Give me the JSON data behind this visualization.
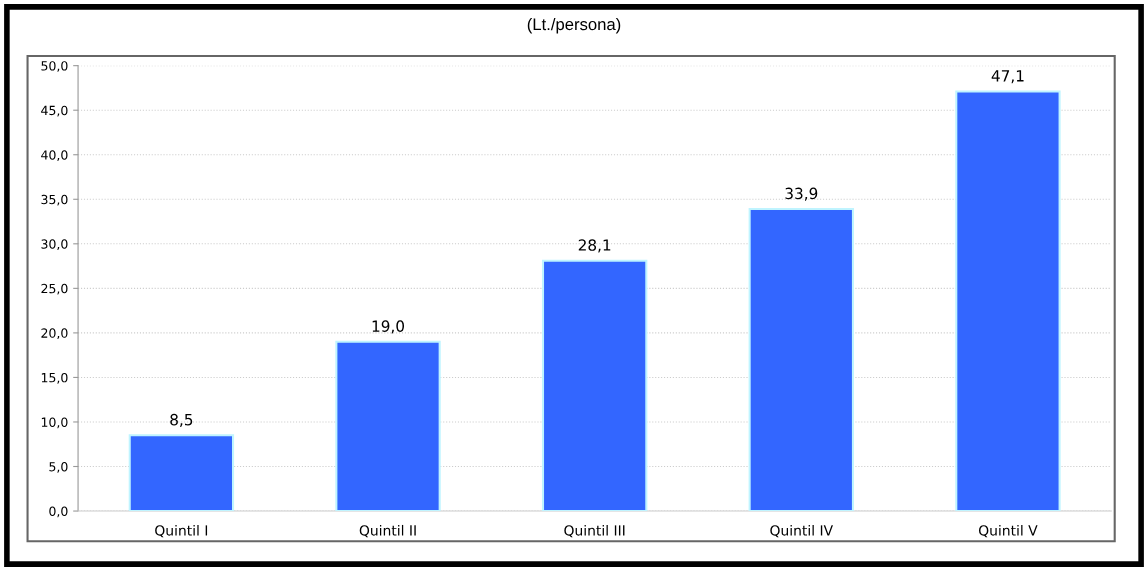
{
  "chart_data": {
    "type": "bar",
    "title": "(Lt./persona)",
    "categories": [
      "Quintil I",
      "Quintil II",
      "Quintil III",
      "Quintil IV",
      "Quintil V"
    ],
    "values": [
      8.5,
      19.0,
      28.1,
      33.9,
      47.1
    ],
    "value_labels": [
      "8,5",
      "19,0",
      "28,1",
      "33,9",
      "47,1"
    ],
    "color": "#3366ff",
    "ylim": [
      0,
      50
    ],
    "yticks": [
      {
        "value": 0,
        "label": "0,0"
      },
      {
        "value": 5,
        "label": "5,0"
      },
      {
        "value": 10,
        "label": "10,0"
      },
      {
        "value": 15,
        "label": "15,0"
      },
      {
        "value": 20,
        "label": "20,0"
      },
      {
        "value": 25,
        "label": "25,0"
      },
      {
        "value": 30,
        "label": "30,0"
      },
      {
        "value": 35,
        "label": "35,0"
      },
      {
        "value": 40,
        "label": "40,0"
      },
      {
        "value": 45,
        "label": "45,0"
      },
      {
        "value": 50,
        "label": "50,0"
      }
    ],
    "grid": "y"
  }
}
